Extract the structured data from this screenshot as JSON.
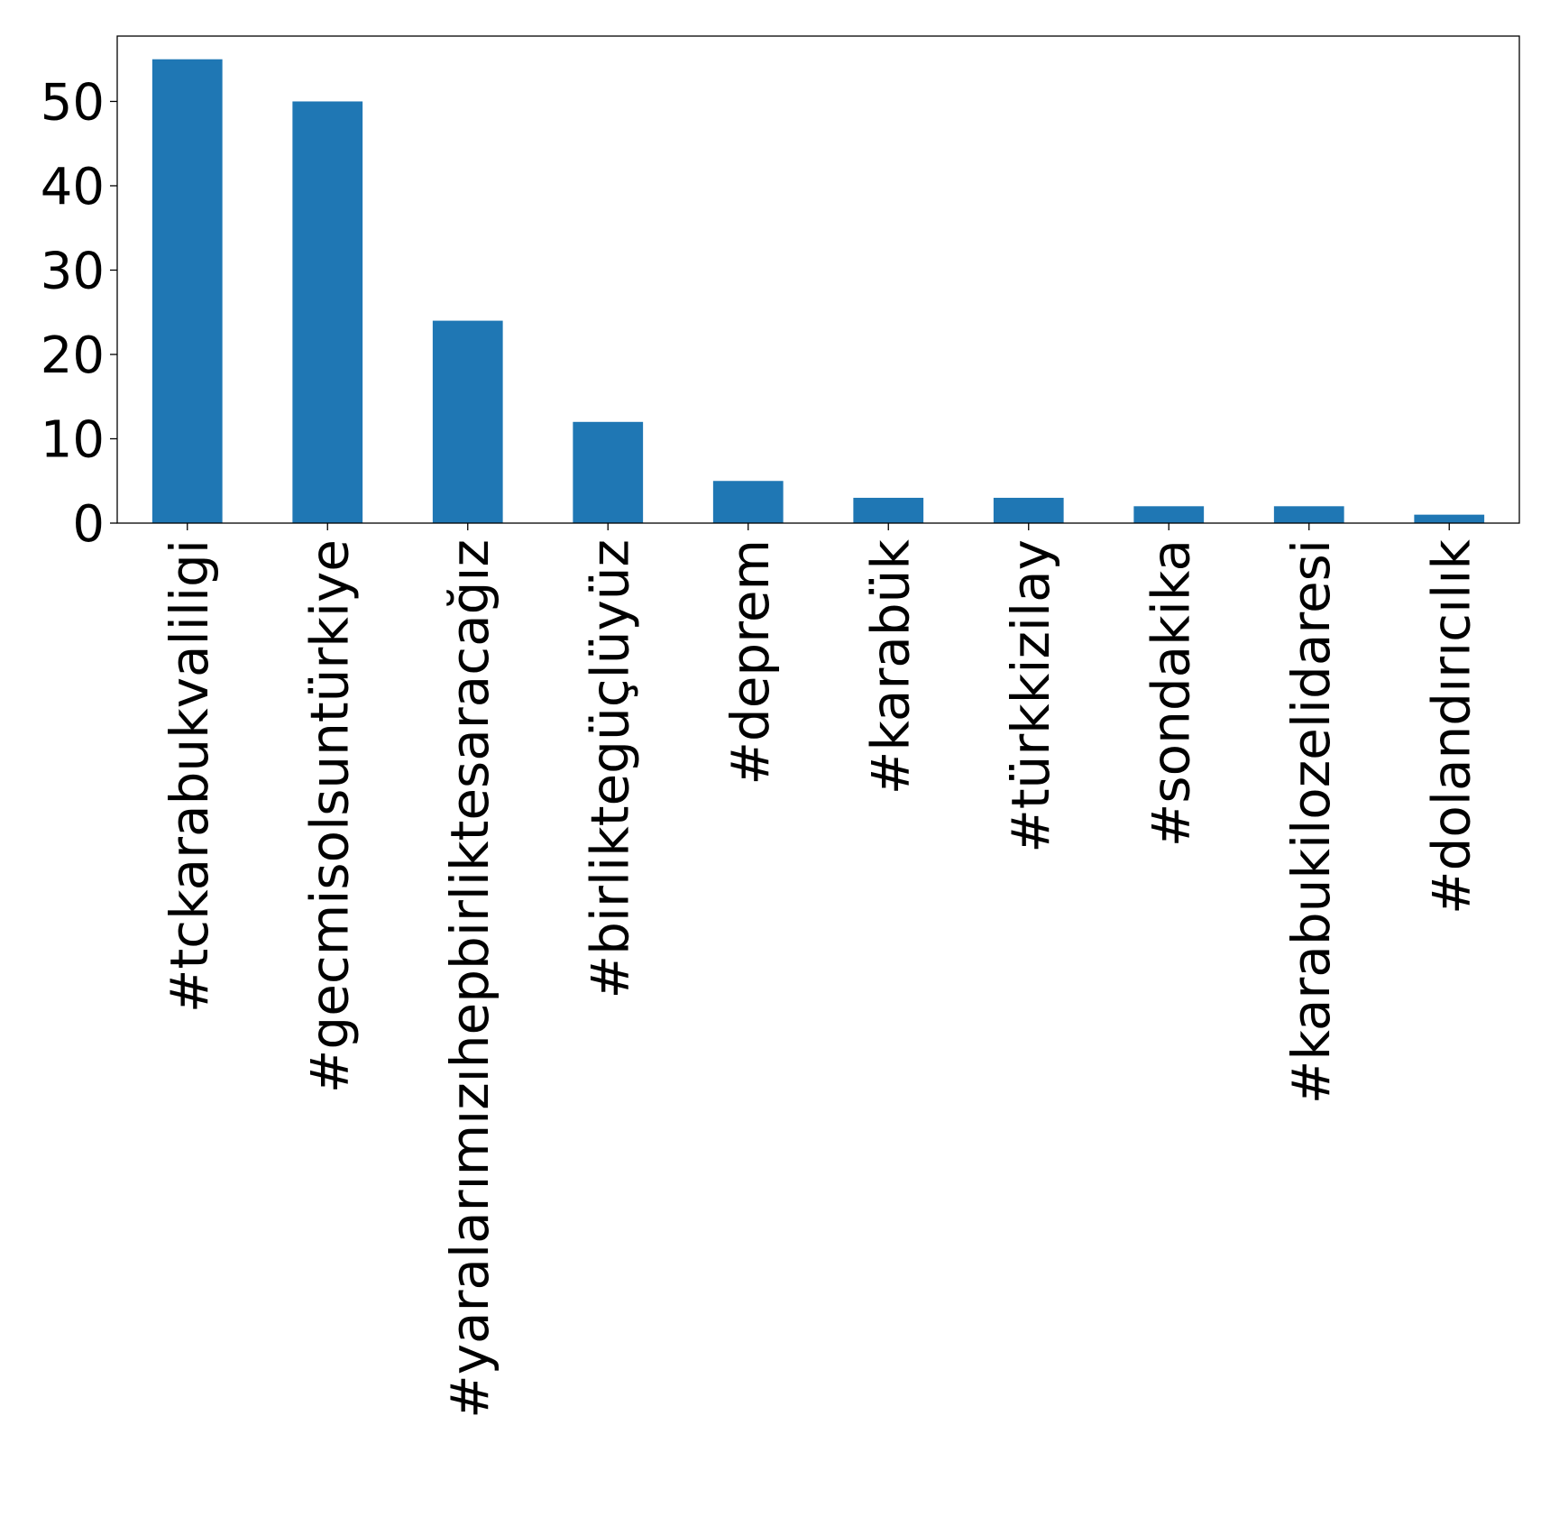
{
  "chart_data": {
    "type": "bar",
    "title": "",
    "xlabel": "",
    "ylabel": "",
    "categories": [
      "#tckarabukvaliligi",
      "#gecmisolsuntürkiye",
      "#yaralarımızıhepbirliktesaracağız",
      "#birliktegüçlüyüz",
      "#deprem",
      "#karabük",
      "#türkkizilay",
      "#sondakika",
      "#karabukilozelidaresi",
      "#dolandırıcılık"
    ],
    "values": [
      55,
      50,
      24,
      12,
      5,
      3,
      3,
      2,
      2,
      1
    ],
    "ylim": [
      0,
      57.75
    ],
    "yticks": [
      "0",
      "10",
      "20",
      "30",
      "40",
      "50"
    ],
    "grid": false,
    "legend": "none",
    "bar_color": "#1f77b4"
  }
}
